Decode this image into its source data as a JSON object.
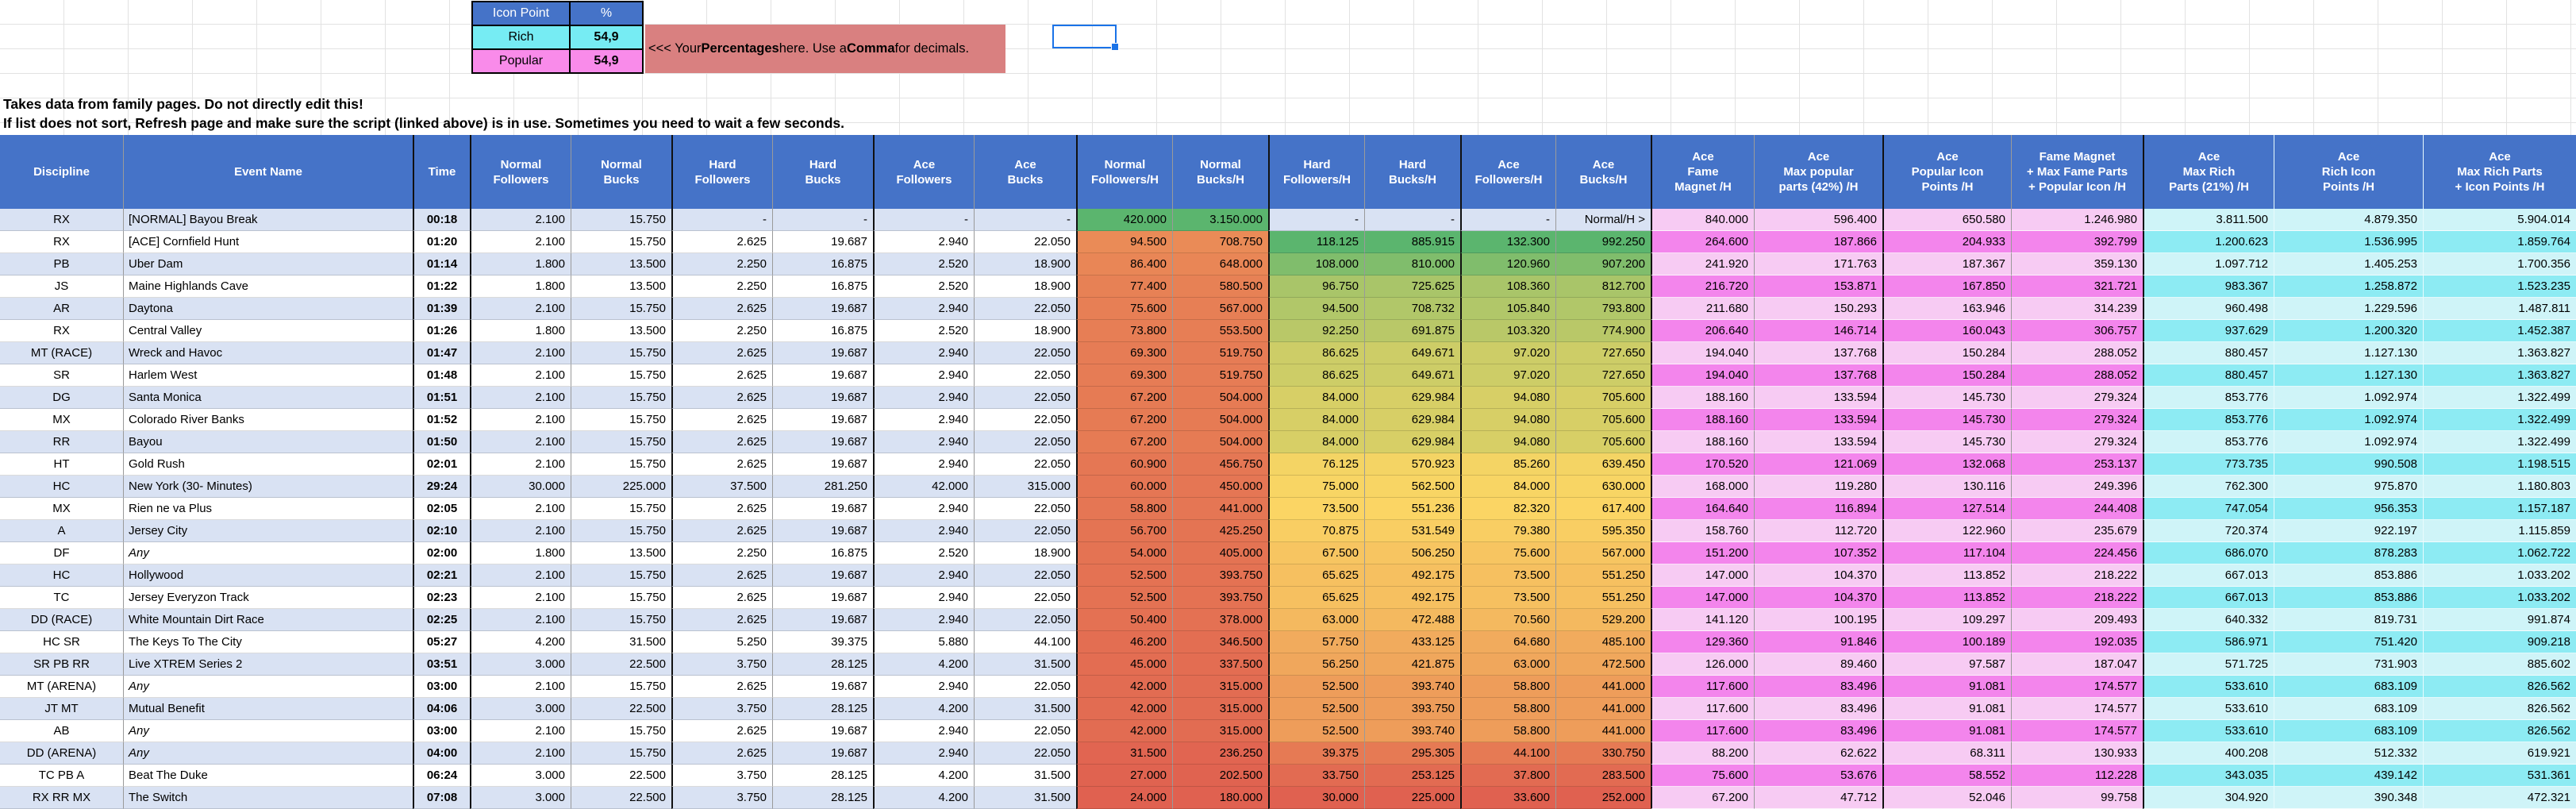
{
  "sheet": {
    "icon_point_table": {
      "headers": [
        "Icon Point",
        "%"
      ],
      "rows": [
        {
          "label": "Rich",
          "value": "54,9"
        },
        {
          "label": "Popular",
          "value": "54,9"
        }
      ]
    },
    "banner_segments": [
      {
        "text": "<<< Your "
      },
      {
        "text": "Percentages",
        "bold": true
      },
      {
        "text": " here. Use a "
      },
      {
        "text": "Comma",
        "bold": true
      },
      {
        "text": " for decimals."
      }
    ],
    "notes": [
      "Takes data from family pages. Do not directly edit this!",
      "If list does not sort, Refresh page and make sure the script (linked above) is in use. Sometimes you need to wait a few seconds."
    ]
  },
  "table": {
    "column_labels": [
      "Discipline",
      "Event Name",
      "Time",
      "Normal\nFollowers",
      "Normal\nBucks",
      "Hard\nFollowers",
      "Hard\nBucks",
      "Ace\nFollowers",
      "Ace\nBucks",
      "Normal\nFollowers/H",
      "Normal\nBucks/H",
      "Hard\nFollowers/H",
      "Hard\nBucks/H",
      "Ace\nFollowers/H",
      "Ace\nBucks/H",
      "Ace\nFame\nMagnet /H",
      "Ace\nMax popular\nparts (42%) /H",
      "Ace\nPopular Icon\nPoints /H",
      "Fame Magnet\n+ Max Fame Parts\n+ Popular Icon /H",
      "Ace\nMax Rich\nParts (21%) /H",
      "Ace\nRich Icon\nPoints /H",
      "Ace\nMax Rich Parts\n+ Icon Points /H"
    ],
    "rows": [
      {
        "cells": [
          "RX",
          "[NORMAL] Bayou Break",
          "00:18",
          "2.100",
          "15.750",
          "-",
          "-",
          "-",
          "-",
          "420.000",
          "3.150.000",
          "-",
          "-",
          "-",
          "Normal/H >",
          "840.000",
          "596.400",
          "650.580",
          "1.246.980",
          "3.811.500",
          "4.879.350",
          "5.904.014"
        ]
      },
      {
        "cells": [
          "RX",
          "[ACE] Cornfield Hunt",
          "01:20",
          "2.100",
          "15.750",
          "2.625",
          "19.687",
          "2.940",
          "22.050",
          "94.500",
          "708.750",
          "118.125",
          "885.915",
          "132.300",
          "992.250",
          "264.600",
          "187.866",
          "204.933",
          "392.799",
          "1.200.623",
          "1.536.995",
          "1.859.764"
        ]
      },
      {
        "cells": [
          "PB",
          "Uber Dam",
          "01:14",
          "1.800",
          "13.500",
          "2.250",
          "16.875",
          "2.520",
          "18.900",
          "86.400",
          "648.000",
          "108.000",
          "810.000",
          "120.960",
          "907.200",
          "241.920",
          "171.763",
          "187.367",
          "359.130",
          "1.097.712",
          "1.405.253",
          "1.700.356"
        ]
      },
      {
        "cells": [
          "JS",
          "Maine Highlands Cave",
          "01:22",
          "1.800",
          "13.500",
          "2.250",
          "16.875",
          "2.520",
          "18.900",
          "77.400",
          "580.500",
          "96.750",
          "725.625",
          "108.360",
          "812.700",
          "216.720",
          "153.871",
          "167.850",
          "321.721",
          "983.367",
          "1.258.872",
          "1.523.235"
        ]
      },
      {
        "cells": [
          "AR",
          "Daytona",
          "01:39",
          "2.100",
          "15.750",
          "2.625",
          "19.687",
          "2.940",
          "22.050",
          "75.600",
          "567.000",
          "94.500",
          "708.732",
          "105.840",
          "793.800",
          "211.680",
          "150.293",
          "163.946",
          "314.239",
          "960.498",
          "1.229.596",
          "1.487.811"
        ]
      },
      {
        "cells": [
          "RX",
          "Central Valley",
          "01:26",
          "1.800",
          "13.500",
          "2.250",
          "16.875",
          "2.520",
          "18.900",
          "73.800",
          "553.500",
          "92.250",
          "691.875",
          "103.320",
          "774.900",
          "206.640",
          "146.714",
          "160.043",
          "306.757",
          "937.629",
          "1.200.320",
          "1.452.387"
        ]
      },
      {
        "cells": [
          "MT (RACE)",
          "Wreck and Havoc",
          "01:47",
          "2.100",
          "15.750",
          "2.625",
          "19.687",
          "2.940",
          "22.050",
          "69.300",
          "519.750",
          "86.625",
          "649.671",
          "97.020",
          "727.650",
          "194.040",
          "137.768",
          "150.284",
          "288.052",
          "880.457",
          "1.127.130",
          "1.363.827"
        ]
      },
      {
        "cells": [
          "SR",
          "Harlem West",
          "01:48",
          "2.100",
          "15.750",
          "2.625",
          "19.687",
          "2.940",
          "22.050",
          "69.300",
          "519.750",
          "86.625",
          "649.671",
          "97.020",
          "727.650",
          "194.040",
          "137.768",
          "150.284",
          "288.052",
          "880.457",
          "1.127.130",
          "1.363.827"
        ]
      },
      {
        "cells": [
          "DG",
          "Santa Monica",
          "01:51",
          "2.100",
          "15.750",
          "2.625",
          "19.687",
          "2.940",
          "22.050",
          "67.200",
          "504.000",
          "84.000",
          "629.984",
          "94.080",
          "705.600",
          "188.160",
          "133.594",
          "145.730",
          "279.324",
          "853.776",
          "1.092.974",
          "1.322.499"
        ]
      },
      {
        "cells": [
          "MX",
          "Colorado River Banks",
          "01:52",
          "2.100",
          "15.750",
          "2.625",
          "19.687",
          "2.940",
          "22.050",
          "67.200",
          "504.000",
          "84.000",
          "629.984",
          "94.080",
          "705.600",
          "188.160",
          "133.594",
          "145.730",
          "279.324",
          "853.776",
          "1.092.974",
          "1.322.499"
        ]
      },
      {
        "cells": [
          "RR",
          "Bayou",
          "01:50",
          "2.100",
          "15.750",
          "2.625",
          "19.687",
          "2.940",
          "22.050",
          "67.200",
          "504.000",
          "84.000",
          "629.984",
          "94.080",
          "705.600",
          "188.160",
          "133.594",
          "145.730",
          "279.324",
          "853.776",
          "1.092.974",
          "1.322.499"
        ]
      },
      {
        "cells": [
          "HT",
          "Gold Rush",
          "02:01",
          "2.100",
          "15.750",
          "2.625",
          "19.687",
          "2.940",
          "22.050",
          "60.900",
          "456.750",
          "76.125",
          "570.923",
          "85.260",
          "639.450",
          "170.520",
          "121.069",
          "132.068",
          "253.137",
          "773.735",
          "990.508",
          "1.198.515"
        ]
      },
      {
        "cells": [
          "HC",
          "New York (30- Minutes)",
          "29:24",
          "30.000",
          "225.000",
          "37.500",
          "281.250",
          "42.000",
          "315.000",
          "60.000",
          "450.000",
          "75.000",
          "562.500",
          "84.000",
          "630.000",
          "168.000",
          "119.280",
          "130.116",
          "249.396",
          "762.300",
          "975.870",
          "1.180.803"
        ]
      },
      {
        "cells": [
          "MX",
          "Rien ne va Plus",
          "02:05",
          "2.100",
          "15.750",
          "2.625",
          "19.687",
          "2.940",
          "22.050",
          "58.800",
          "441.000",
          "73.500",
          "551.236",
          "82.320",
          "617.400",
          "164.640",
          "116.894",
          "127.514",
          "244.408",
          "747.054",
          "956.353",
          "1.157.187"
        ]
      },
      {
        "cells": [
          "A",
          "Jersey City",
          "02:10",
          "2.100",
          "15.750",
          "2.625",
          "19.687",
          "2.940",
          "22.050",
          "56.700",
          "425.250",
          "70.875",
          "531.549",
          "79.380",
          "595.350",
          "158.760",
          "112.720",
          "122.960",
          "235.679",
          "720.374",
          "922.197",
          "1.115.859"
        ]
      },
      {
        "cells": [
          "DF",
          "Any",
          "02:00",
          "1.800",
          "13.500",
          "2.250",
          "16.875",
          "2.520",
          "18.900",
          "54.000",
          "405.000",
          "67.500",
          "506.250",
          "75.600",
          "567.000",
          "151.200",
          "107.352",
          "117.104",
          "224.456",
          "686.070",
          "878.283",
          "1.062.722"
        ],
        "italic_event": true
      },
      {
        "cells": [
          "HC",
          "Hollywood",
          "02:21",
          "2.100",
          "15.750",
          "2.625",
          "19.687",
          "2.940",
          "22.050",
          "52.500",
          "393.750",
          "65.625",
          "492.175",
          "73.500",
          "551.250",
          "147.000",
          "104.370",
          "113.852",
          "218.222",
          "667.013",
          "853.886",
          "1.033.202"
        ]
      },
      {
        "cells": [
          "TC",
          "Jersey Everyzon Track",
          "02:23",
          "2.100",
          "15.750",
          "2.625",
          "19.687",
          "2.940",
          "22.050",
          "52.500",
          "393.750",
          "65.625",
          "492.175",
          "73.500",
          "551.250",
          "147.000",
          "104.370",
          "113.852",
          "218.222",
          "667.013",
          "853.886",
          "1.033.202"
        ]
      },
      {
        "cells": [
          "DD (RACE)",
          "White Mountain Dirt Race",
          "02:25",
          "2.100",
          "15.750",
          "2.625",
          "19.687",
          "2.940",
          "22.050",
          "50.400",
          "378.000",
          "63.000",
          "472.488",
          "70.560",
          "529.200",
          "141.120",
          "100.195",
          "109.297",
          "209.493",
          "640.332",
          "819.731",
          "991.874"
        ]
      },
      {
        "cells": [
          "HC SR",
          "The Keys To The City",
          "05:27",
          "4.200",
          "31.500",
          "5.250",
          "39.375",
          "5.880",
          "44.100",
          "46.200",
          "346.500",
          "57.750",
          "433.125",
          "64.680",
          "485.100",
          "129.360",
          "91.846",
          "100.189",
          "192.035",
          "586.971",
          "751.420",
          "909.218"
        ]
      },
      {
        "cells": [
          "SR PB RR",
          "Live XTREM Series 2",
          "03:51",
          "3.000",
          "22.500",
          "3.750",
          "28.125",
          "4.200",
          "31.500",
          "45.000",
          "337.500",
          "56.250",
          "421.875",
          "63.000",
          "472.500",
          "126.000",
          "89.460",
          "97.587",
          "187.047",
          "571.725",
          "731.903",
          "885.602"
        ]
      },
      {
        "cells": [
          "MT (ARENA)",
          "Any",
          "03:00",
          "2.100",
          "15.750",
          "2.625",
          "19.687",
          "2.940",
          "22.050",
          "42.000",
          "315.000",
          "52.500",
          "393.740",
          "58.800",
          "441.000",
          "117.600",
          "83.496",
          "91.081",
          "174.577",
          "533.610",
          "683.109",
          "826.562"
        ],
        "italic_event": true
      },
      {
        "cells": [
          "JT MT",
          "Mutual Benefit",
          "04:06",
          "3.000",
          "22.500",
          "3.750",
          "28.125",
          "4.200",
          "31.500",
          "42.000",
          "315.000",
          "52.500",
          "393.750",
          "58.800",
          "441.000",
          "117.600",
          "83.496",
          "91.081",
          "174.577",
          "533.610",
          "683.109",
          "826.562"
        ]
      },
      {
        "cells": [
          "AB",
          "Any",
          "03:00",
          "2.100",
          "15.750",
          "2.625",
          "19.687",
          "2.940",
          "22.050",
          "42.000",
          "315.000",
          "52.500",
          "393.740",
          "58.800",
          "441.000",
          "117.600",
          "83.496",
          "91.081",
          "174.577",
          "533.610",
          "683.109",
          "826.562"
        ],
        "italic_event": true
      },
      {
        "cells": [
          "DD (ARENA)",
          "Any",
          "04:00",
          "2.100",
          "15.750",
          "2.625",
          "19.687",
          "2.940",
          "22.050",
          "31.500",
          "236.250",
          "39.375",
          "295.305",
          "44.100",
          "330.750",
          "88.200",
          "62.622",
          "68.311",
          "130.933",
          "400.208",
          "512.332",
          "619.921"
        ],
        "italic_event": true
      },
      {
        "cells": [
          "TC PB A",
          "Beat The Duke",
          "06:24",
          "3.000",
          "22.500",
          "3.750",
          "28.125",
          "4.200",
          "31.500",
          "27.000",
          "202.500",
          "33.750",
          "253.125",
          "37.800",
          "283.500",
          "75.600",
          "53.676",
          "58.552",
          "112.228",
          "343.035",
          "439.142",
          "531.361"
        ]
      },
      {
        "cells": [
          "RX RR MX",
          "The Switch",
          "07:08",
          "3.000",
          "22.500",
          "3.750",
          "28.125",
          "4.200",
          "31.500",
          "24.000",
          "180.000",
          "30.000",
          "225.000",
          "33.600",
          "252.000",
          "67.200",
          "47.712",
          "52.046",
          "99.758",
          "304.920",
          "390.348",
          "472.321"
        ]
      }
    ]
  },
  "colors": {
    "header_blue": "#4573C8",
    "stripe_blue": "#D9E2F3",
    "banner_red": "#D98080",
    "rich_cyan": "#76ECF3",
    "popular_pink": "#F98BEA",
    "pink_light": "#F7CBF3",
    "pink_dark": "#F385EC",
    "cyan_light": "#CFF4F8",
    "cyan_dark": "#8DEBF3",
    "scale_low_red": "#E06150",
    "scale_mid_yellow": "#FBD664",
    "scale_high_green": "#5BB56E",
    "selection_blue": "#1A73E8"
  }
}
